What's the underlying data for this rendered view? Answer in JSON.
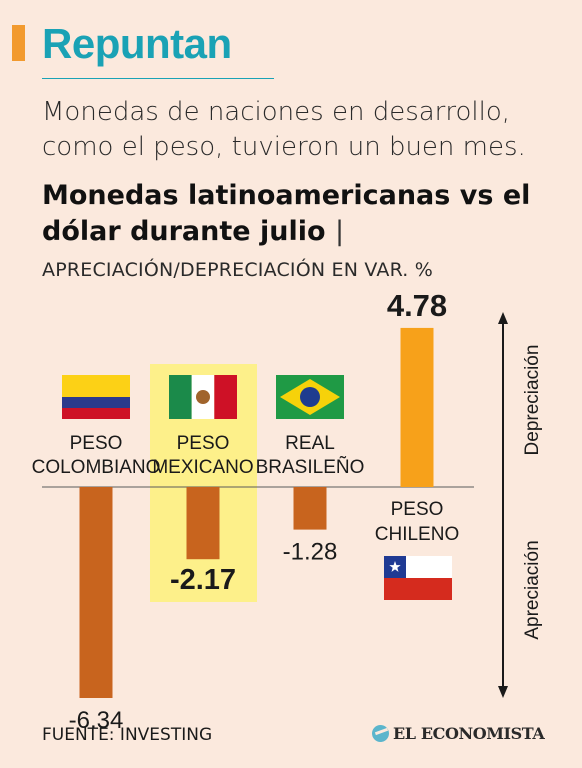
{
  "headline": "Repuntan",
  "subtitle": "Monedas de naciones en desarrollo, como el peso, tuvieron un buen mes.",
  "chart_data": {
    "type": "bar",
    "title": "Monedas latinoamericanas vs el dólar durante julio",
    "subtitle": "APRECIACIÓN/DEPRECIACIÓN EN VAR. %",
    "categories": [
      {
        "lines": [
          "PESO",
          "COLOMBIANO"
        ],
        "flag": "colombia-flag",
        "value_label": "-6.34",
        "highlight": false
      },
      {
        "lines": [
          "PESO",
          "MEXICANO"
        ],
        "flag": "mexico-flag",
        "value_label": "-2.17",
        "highlight": true
      },
      {
        "lines": [
          "REAL",
          "BRASILEÑO"
        ],
        "flag": "brazil-flag",
        "value_label": "-1.28",
        "highlight": false
      },
      {
        "lines": [
          "PESO",
          "CHILENO"
        ],
        "flag": "chile-flag",
        "value_label": "4.78",
        "highlight": false
      }
    ],
    "values": [
      -6.34,
      -2.17,
      -1.28,
      4.78
    ],
    "ylim": [
      -6.34,
      4.78
    ],
    "axis_labels": {
      "up": "Depreciación",
      "down": "Apreciación"
    },
    "colors": {
      "negative": "#c8641e",
      "positive": "#f7a11a",
      "highlight": "#fdf08a",
      "axis": "#5a5a5a"
    }
  },
  "footer": {
    "source": "FUENTE: INVESTING",
    "brand": "EL ECONOMISTA"
  }
}
